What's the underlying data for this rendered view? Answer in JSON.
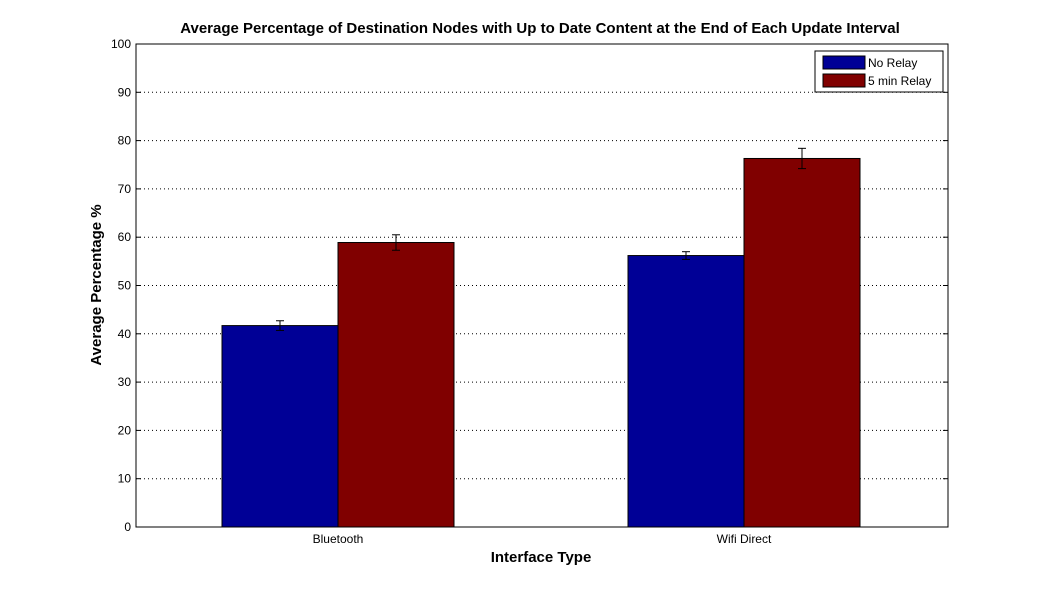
{
  "chart_data": {
    "type": "bar",
    "title": "Average Percentage of Destination Nodes with Up to Date Content at the End of Each Update Interval",
    "xlabel": "Interface Type",
    "ylabel": "Average Percentage %",
    "categories": [
      "Bluetooth",
      "Wifi Direct"
    ],
    "ylim": [
      0,
      100
    ],
    "yticks": [
      0,
      10,
      20,
      30,
      40,
      50,
      60,
      70,
      80,
      90,
      100
    ],
    "grid": "y-dotted",
    "legend_position": "top-right",
    "series": [
      {
        "name": "No Relay",
        "color": "#000096",
        "values": [
          41.7,
          56.2
        ],
        "errors": [
          1.0,
          0.8
        ]
      },
      {
        "name": "5 min Relay",
        "color": "#800000",
        "values": [
          58.9,
          76.3
        ],
        "errors": [
          1.6,
          2.1
        ]
      }
    ]
  }
}
